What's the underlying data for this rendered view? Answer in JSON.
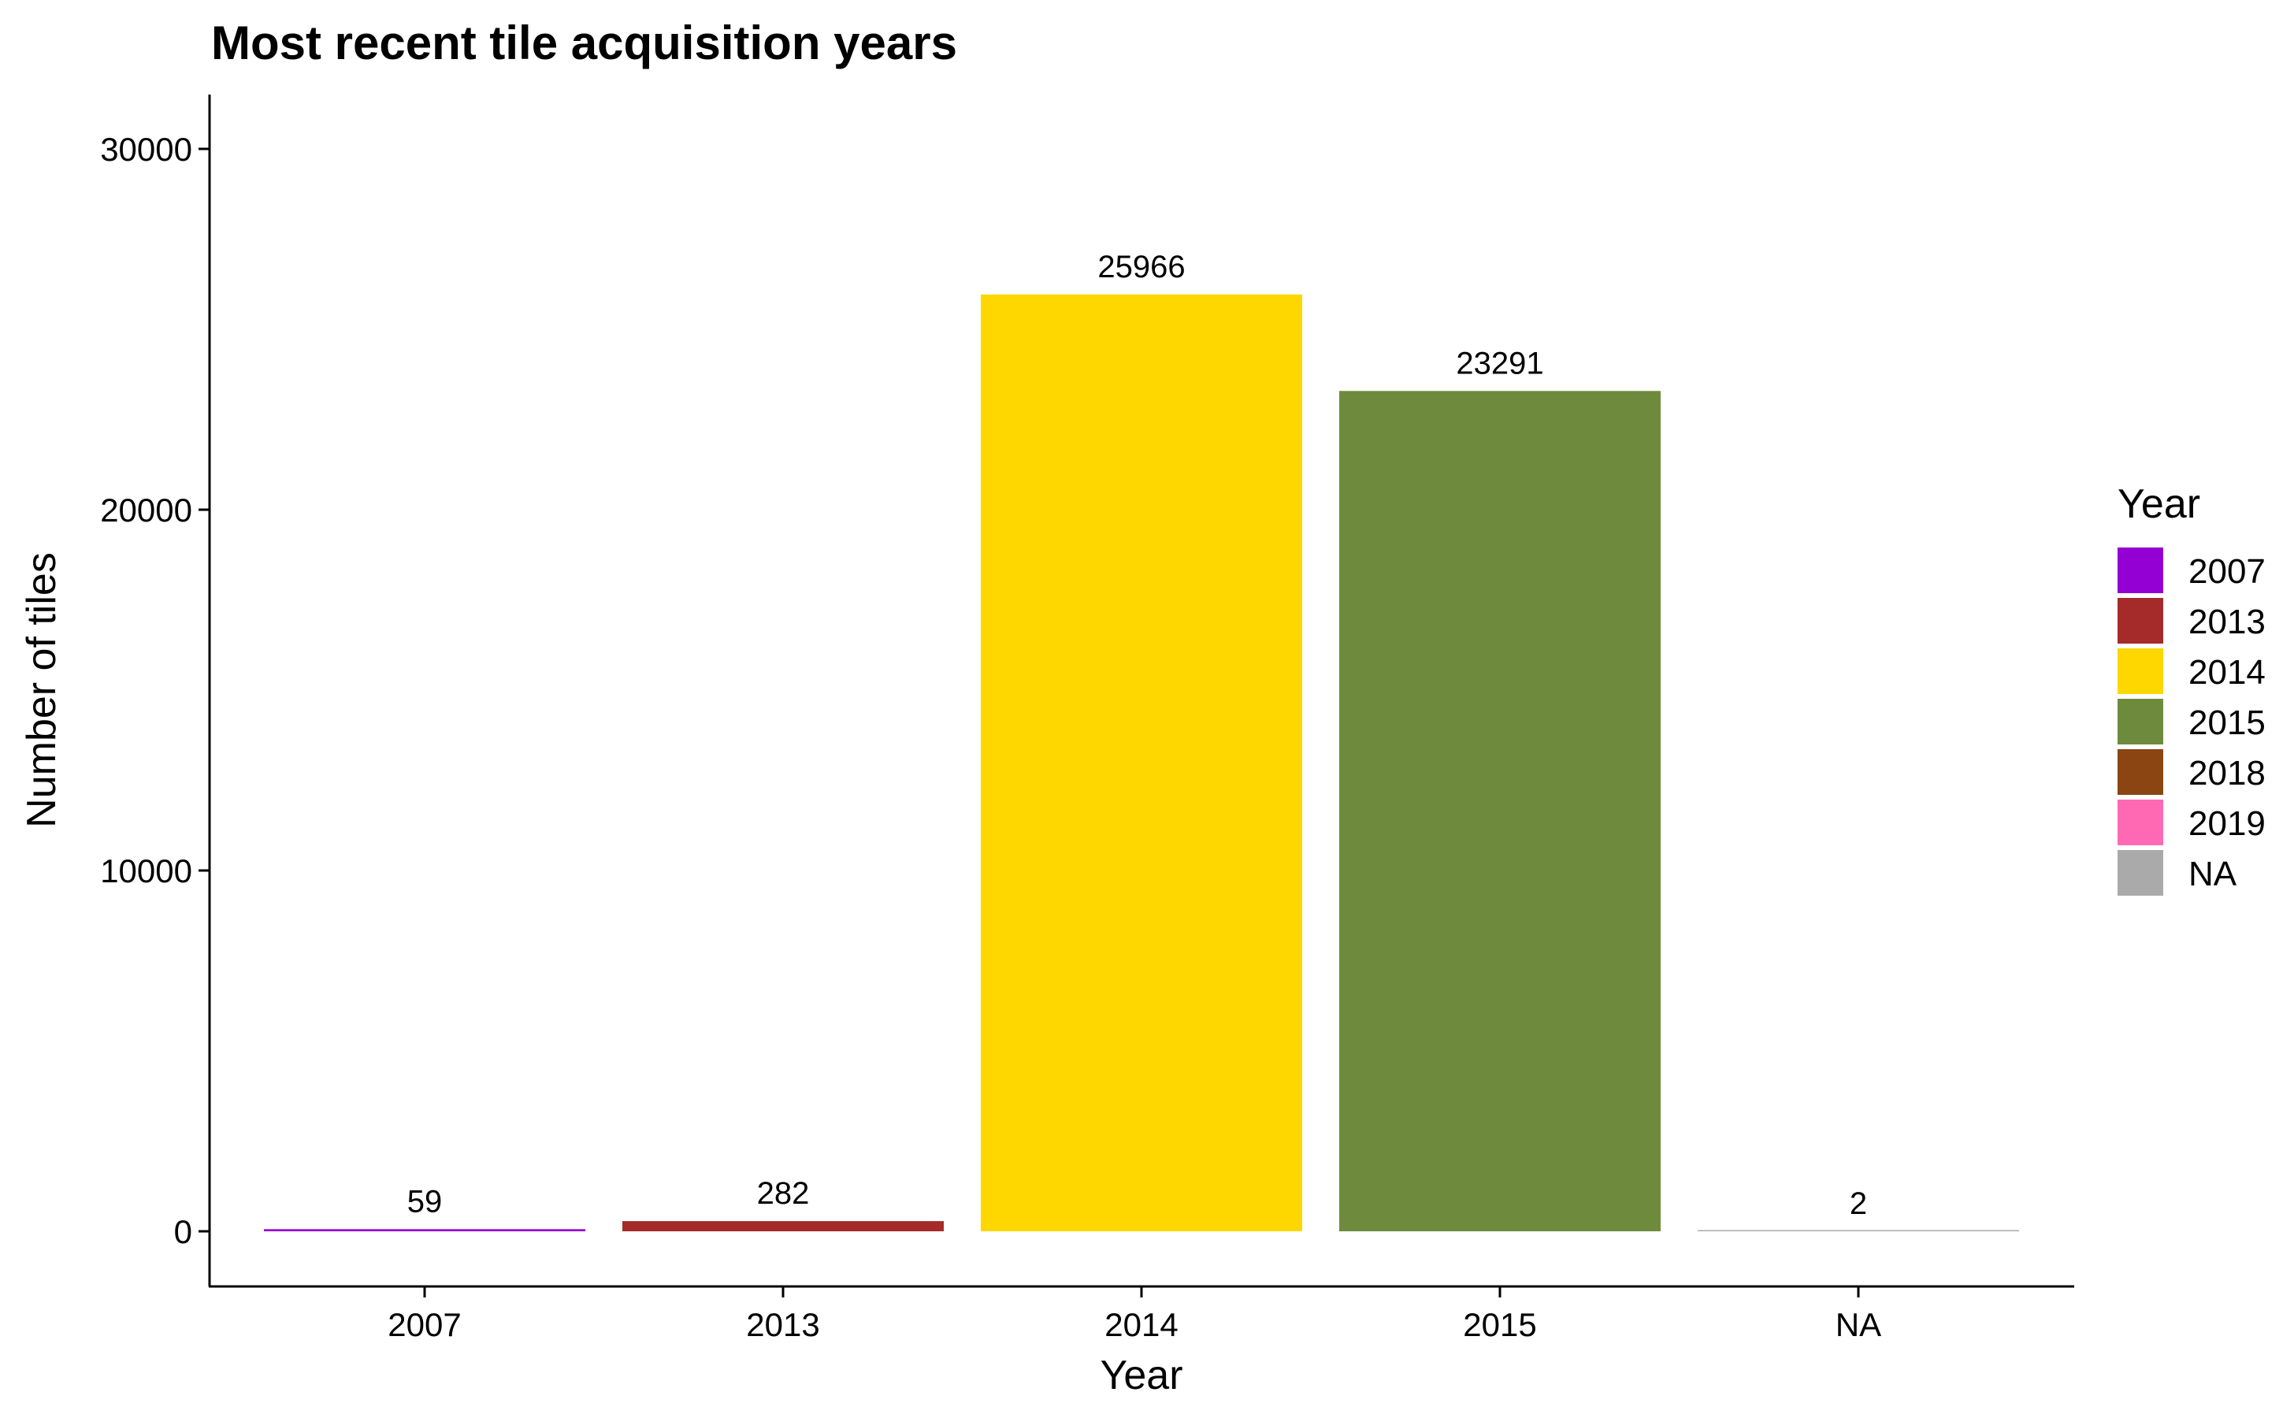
{
  "chart_data": {
    "type": "bar",
    "title": "Most recent tile acquisition years",
    "xlabel": "Year",
    "ylabel": "Number of tiles",
    "categories": [
      "2007",
      "2013",
      "2014",
      "2015",
      "NA"
    ],
    "values": [
      59,
      282,
      25966,
      23291,
      2
    ],
    "data_labels": [
      "59",
      "282",
      "25966",
      "23291",
      "2"
    ],
    "bar_colors": [
      "#9400D3",
      "#A52A2A",
      "#FFD700",
      "#6E8B3D",
      "#AAAAAA"
    ],
    "ylim": [
      -1500,
      31500
    ],
    "yticks": [
      0,
      10000,
      20000,
      30000
    ],
    "ytick_labels": [
      "0",
      "10000",
      "20000",
      "30000"
    ],
    "grid": false,
    "legend": {
      "title": "Year",
      "position": "right",
      "entries": [
        {
          "label": "2007",
          "color": "#9400D3"
        },
        {
          "label": "2013",
          "color": "#A52A2A"
        },
        {
          "label": "2014",
          "color": "#FFD700"
        },
        {
          "label": "2015",
          "color": "#6E8B3D"
        },
        {
          "label": "2018",
          "color": "#8B4513"
        },
        {
          "label": "2019",
          "color": "#FF69B4"
        },
        {
          "label": "NA",
          "color": "#AAAAAA"
        }
      ]
    }
  }
}
